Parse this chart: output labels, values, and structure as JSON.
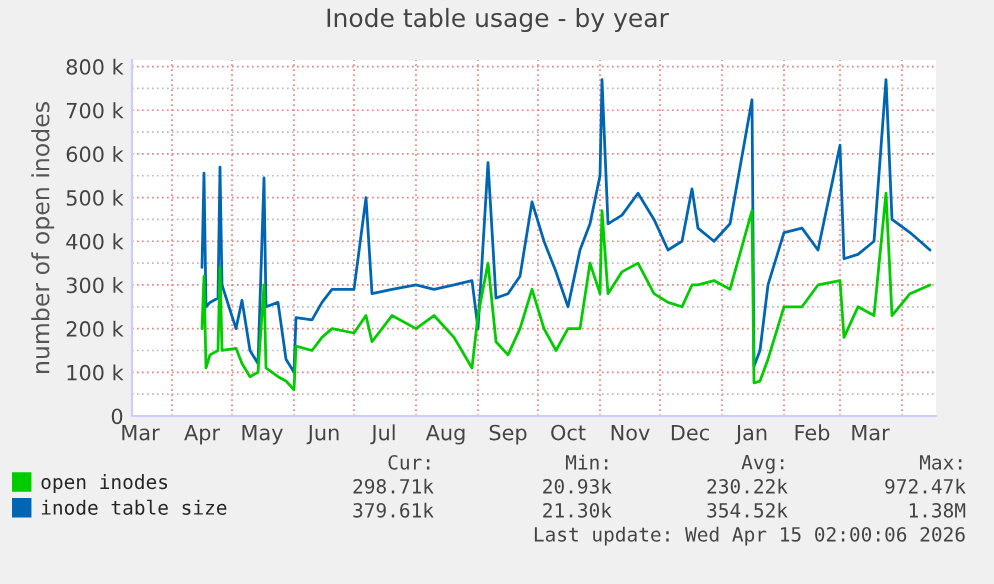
{
  "chart_data": {
    "type": "line",
    "title": "Inode table usage - by year",
    "ylabel": "number of open inodes",
    "x": [
      "2025-04-16",
      "2025-04-17",
      "2025-04-18",
      "2025-04-20",
      "2025-04-24",
      "2025-04-25",
      "2025-04-26",
      "2025-05-03",
      "2025-05-06",
      "2025-05-10",
      "2025-05-14",
      "2025-05-17",
      "2025-05-18",
      "2025-05-24",
      "2025-05-28",
      "2025-06-01",
      "2025-06-02",
      "2025-06-10",
      "2025-06-15",
      "2025-06-20",
      "2025-07-01",
      "2025-07-07",
      "2025-07-10",
      "2025-07-20",
      "2025-08-01",
      "2025-08-10",
      "2025-08-20",
      "2025-08-29",
      "2025-09-01",
      "2025-09-06",
      "2025-09-10",
      "2025-09-16",
      "2025-09-22",
      "2025-09-28",
      "2025-10-04",
      "2025-10-10",
      "2025-10-16",
      "2025-10-22",
      "2025-10-27",
      "2025-11-01",
      "2025-11-02",
      "2025-11-05",
      "2025-11-12",
      "2025-11-20",
      "2025-11-28",
      "2025-12-05",
      "2025-12-12",
      "2025-12-17",
      "2025-12-20",
      "2025-12-28",
      "2026-01-05",
      "2026-01-16",
      "2026-01-17",
      "2026-01-20",
      "2026-01-24",
      "2026-02-01",
      "2026-02-10",
      "2026-02-18",
      "2026-03-01",
      "2026-03-03",
      "2026-03-10",
      "2026-03-18",
      "2026-03-24",
      "2026-03-27",
      "2026-04-05",
      "2026-04-15"
    ],
    "series": [
      {
        "name": "open inodes",
        "color": "#00cc00",
        "values": [
          200000,
          320000,
          110000,
          140000,
          150000,
          340000,
          150000,
          155000,
          120000,
          90000,
          100000,
          300000,
          110000,
          90000,
          80000,
          60000,
          160000,
          150000,
          180000,
          200000,
          190000,
          230000,
          170000,
          230000,
          200000,
          230000,
          180000,
          110000,
          230000,
          350000,
          170000,
          140000,
          200000,
          290000,
          200000,
          150000,
          200000,
          200000,
          350000,
          280000,
          470000,
          280000,
          330000,
          350000,
          280000,
          260000,
          250000,
          300000,
          300000,
          310000,
          290000,
          470000,
          76000,
          80000,
          130000,
          250000,
          250000,
          300000,
          310000,
          180000,
          250000,
          230000,
          510000,
          230000,
          280000,
          300000
        ]
      },
      {
        "name": "inode table size",
        "color": "#0066b3",
        "values": [
          340000,
          556000,
          250000,
          260000,
          270000,
          570000,
          300000,
          200000,
          265000,
          150000,
          120000,
          545000,
          250000,
          260000,
          130000,
          100000,
          225000,
          220000,
          260000,
          290000,
          290000,
          500000,
          280000,
          290000,
          300000,
          290000,
          300000,
          310000,
          200000,
          580000,
          270000,
          280000,
          320000,
          490000,
          400000,
          330000,
          250000,
          380000,
          440000,
          550000,
          770000,
          440000,
          460000,
          510000,
          450000,
          380000,
          400000,
          520000,
          430000,
          400000,
          440000,
          724000,
          114000,
          150000,
          300000,
          420000,
          430000,
          380000,
          620000,
          360000,
          370000,
          400000,
          770000,
          450000,
          420000,
          380000
        ]
      }
    ],
    "xlim": [
      "2025-03-12",
      "2026-04-18"
    ],
    "xticks": [
      {
        "value": "2025-03-16",
        "label": "Mar"
      },
      {
        "value": "2025-04-01",
        "label": null
      },
      {
        "value": "2025-04-16",
        "label": "Apr"
      },
      {
        "value": "2025-05-01",
        "label": null
      },
      {
        "value": "2025-05-16",
        "label": "May"
      },
      {
        "value": "2025-06-01",
        "label": null
      },
      {
        "value": "2025-06-16",
        "label": "Jun"
      },
      {
        "value": "2025-07-01",
        "label": null
      },
      {
        "value": "2025-07-16",
        "label": "Jul"
      },
      {
        "value": "2025-08-01",
        "label": null
      },
      {
        "value": "2025-08-16",
        "label": "Aug"
      },
      {
        "value": "2025-09-01",
        "label": null
      },
      {
        "value": "2025-09-16",
        "label": "Sep"
      },
      {
        "value": "2025-10-01",
        "label": null
      },
      {
        "value": "2025-10-16",
        "label": "Oct"
      },
      {
        "value": "2025-11-01",
        "label": null
      },
      {
        "value": "2025-11-16",
        "label": "Nov"
      },
      {
        "value": "2025-12-01",
        "label": null
      },
      {
        "value": "2025-12-16",
        "label": "Dec"
      },
      {
        "value": "2026-01-01",
        "label": null
      },
      {
        "value": "2026-01-16",
        "label": "Jan"
      },
      {
        "value": "2026-02-01",
        "label": null
      },
      {
        "value": "2026-02-15",
        "label": "Feb"
      },
      {
        "value": "2026-03-01",
        "label": null
      },
      {
        "value": "2026-03-16",
        "label": "Mar"
      },
      {
        "value": "2026-04-01",
        "label": null
      }
    ],
    "ylim": [
      0,
      815000
    ],
    "yticks": [
      0,
      {
        "value": 50000,
        "label": null
      },
      {
        "value": 100000,
        "label": "100 k"
      },
      {
        "value": 150000,
        "label": null
      },
      {
        "value": 200000,
        "label": "200 k"
      },
      {
        "value": 250000,
        "label": null
      },
      {
        "value": 300000,
        "label": "300 k"
      },
      {
        "value": 350000,
        "label": null
      },
      {
        "value": 400000,
        "label": "400 k"
      },
      {
        "value": 450000,
        "label": null
      },
      {
        "value": 500000,
        "label": "500 k"
      },
      {
        "value": 550000,
        "label": null
      },
      {
        "value": 600000,
        "label": "600 k"
      },
      {
        "value": 650000,
        "label": null
      },
      {
        "value": 700000,
        "label": "700 k"
      },
      {
        "value": 750000,
        "label": null
      },
      {
        "value": 800000,
        "label": "800 k"
      }
    ],
    "grid": true,
    "legend": "bottom",
    "marker": "none",
    "line_style": "solid",
    "annotations": [
      "Cur:",
      "Min:",
      "Avg:",
      "Max:",
      "298.71k",
      "20.93k",
      "230.22k",
      "972.47k",
      "379.61k",
      "21.30k",
      "354.52k",
      "1.38M",
      "Last update: Wed Apr 15 02:00:06 2026"
    ]
  }
}
